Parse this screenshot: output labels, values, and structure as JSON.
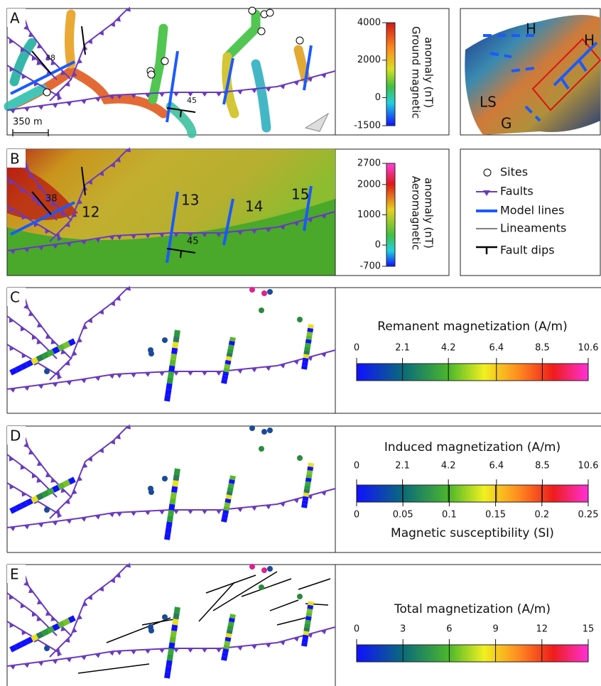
{
  "panel_a": {
    "label": "A",
    "scale": "350 m",
    "dips": [
      "38",
      "45"
    ],
    "colorbar": {
      "title": [
        "Ground magnetic",
        "anomaly (nT)"
      ],
      "ticks": [
        4000,
        2000,
        0,
        -1500
      ]
    }
  },
  "inset": {
    "labels": [
      "H",
      "H",
      "LS",
      "G"
    ]
  },
  "panel_b": {
    "label": "B",
    "dips": [
      "38",
      "45"
    ],
    "line_labels": [
      "12",
      "13",
      "14",
      "15"
    ],
    "colorbar": {
      "title": [
        "Aeromagnetic",
        "anomaly (nT)"
      ],
      "ticks": [
        2700,
        2000,
        1000,
        0,
        -700
      ]
    }
  },
  "legend": [
    "Sites",
    "Faults",
    "Model lines",
    "Lineaments",
    "Fault dips"
  ],
  "panel_c": {
    "label": "C",
    "colorbar": {
      "title": "Remanent magnetization (A/m)",
      "ticks": [
        0,
        2.1,
        4.2,
        6.4,
        8.5,
        10.6
      ]
    }
  },
  "panel_d": {
    "label": "D",
    "colorbar": {
      "title": "Induced magnetization (A/m)",
      "ticks": [
        0,
        2.1,
        4.2,
        6.4,
        8.5,
        10.6
      ],
      "bottom_title": "Magnetic susceptibility (SI)",
      "bottom_ticks": [
        0,
        0.05,
        0.1,
        0.15,
        0.2,
        0.25
      ]
    }
  },
  "panel_e": {
    "label": "E",
    "colorbar": {
      "title": "Total magnetization (A/m)",
      "ticks": [
        0,
        3,
        6,
        9,
        12,
        15
      ]
    }
  }
}
